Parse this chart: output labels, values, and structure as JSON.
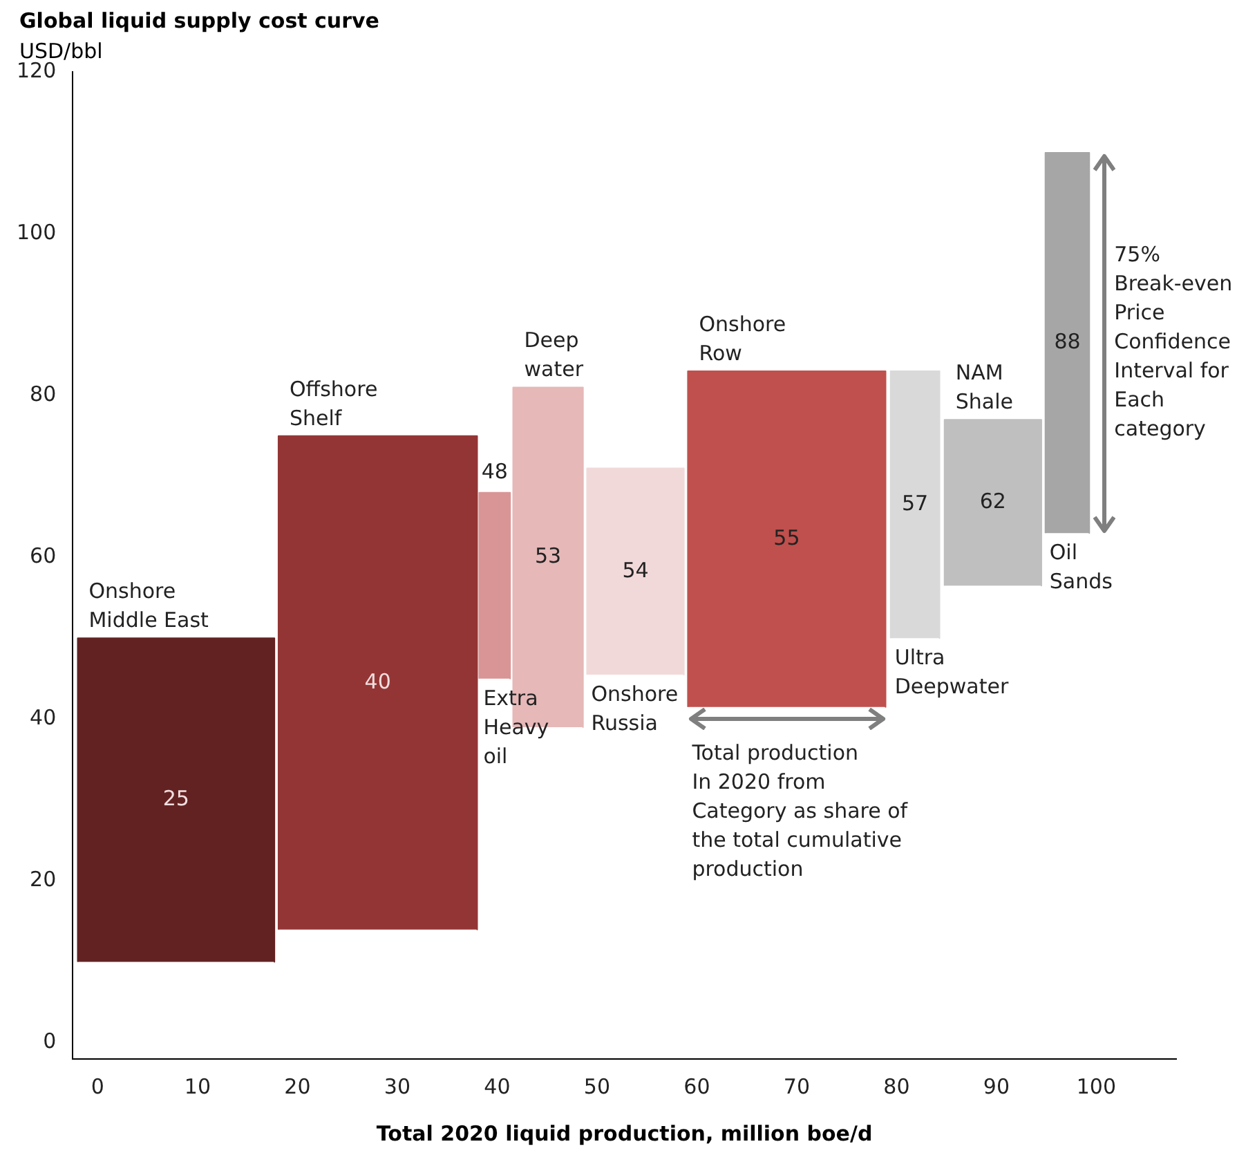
{
  "chart_data": {
    "type": "area",
    "title": "Global liquid supply cost curve",
    "subtitle": "USD/bbl",
    "xlabel": "Total 2020 liquid production, million boe/d",
    "series": [
      {
        "color": "#632222",
        "x": [
          -2,
          -2,
          17.7,
          17.7
        ],
        "values": [
          10,
          50,
          50,
          10
        ]
      },
      {
        "color": "#943535",
        "x": [
          18.1,
          18.1,
          38,
          38
        ],
        "values": [
          14,
          75,
          75,
          14
        ]
      },
      {
        "color": "#d99595",
        "x": [
          38.2,
          38.2,
          41.3,
          41.3
        ],
        "values": [
          45,
          68,
          68,
          45
        ]
      },
      {
        "color": "#e6b8b8",
        "x": [
          41.6,
          41.6,
          48.6,
          48.6
        ],
        "values": [
          39,
          81,
          81,
          39
        ]
      },
      {
        "color": "#f2d9d9",
        "x": [
          49,
          49,
          58.7,
          58.7
        ],
        "values": [
          45.5,
          71,
          71,
          45.5
        ]
      },
      {
        "color": "#c0504d",
        "x": [
          59.1,
          59.1,
          78.9,
          78.9
        ],
        "values": [
          41.5,
          83,
          83,
          41.5
        ]
      },
      {
        "color": "#d9d9d9",
        "x": [
          79.4,
          79.4,
          84.3,
          84.3
        ],
        "values": [
          50,
          83,
          83,
          50
        ]
      },
      {
        "color": "#bfbfbf",
        "x": [
          84.8,
          84.8,
          94.5,
          94.5
        ],
        "values": [
          56.5,
          77,
          77,
          56.5
        ]
      },
      {
        "color": "#a6a6a6",
        "x": [
          94.9,
          94.9,
          99.3,
          99.3
        ],
        "values": [
          63,
          110,
          110,
          63
        ]
      }
    ],
    "xlim": [
      -2.5,
      108
    ],
    "xticks": [
      0,
      10,
      20,
      30,
      40,
      50,
      60,
      70,
      80,
      90,
      100
    ],
    "ylim": [
      -2,
      120
    ],
    "yticks": [
      0,
      20,
      40,
      60,
      80,
      100,
      120
    ],
    "grid": false,
    "legend": false,
    "annotations": [
      "25",
      "40",
      "48",
      "53",
      "54",
      "55",
      "57",
      "62",
      "88",
      "75%\nBreak-even\nPrice\nConfidence\nInterval for\nEach\ncategory",
      {
        "text": "Onshore\nMiddle East",
        "x": -2,
        "y": 50
      },
      {
        "text": "Offshore\nShelf",
        "x": 18.1,
        "y": 75
      },
      {
        "text": "Extra\nHeavy\noil",
        "x": 38.2,
        "y": 45
      },
      {
        "text": "Deep\nwater",
        "x": 41.6,
        "y": 81
      },
      {
        "text": "Onshore\nRussia",
        "x": 49,
        "y": 45.5
      },
      {
        "text": "Onshore\nRow",
        "x": 59.1,
        "y": 83
      },
      {
        "text": "Total production\nIn 2020 from\nCategory as share of\nthe total cumulative\nproduction",
        "x": 59.1,
        "y": 41.5
      },
      {
        "text": "Ultra\nDeepwater",
        "x": 79.4,
        "y": 50
      },
      {
        "text": "NAM\nShale",
        "x": 84.8,
        "y": 77
      },
      {
        "text": "Oil\nSands",
        "x": 94.9,
        "y": 63
      }
    ]
  }
}
